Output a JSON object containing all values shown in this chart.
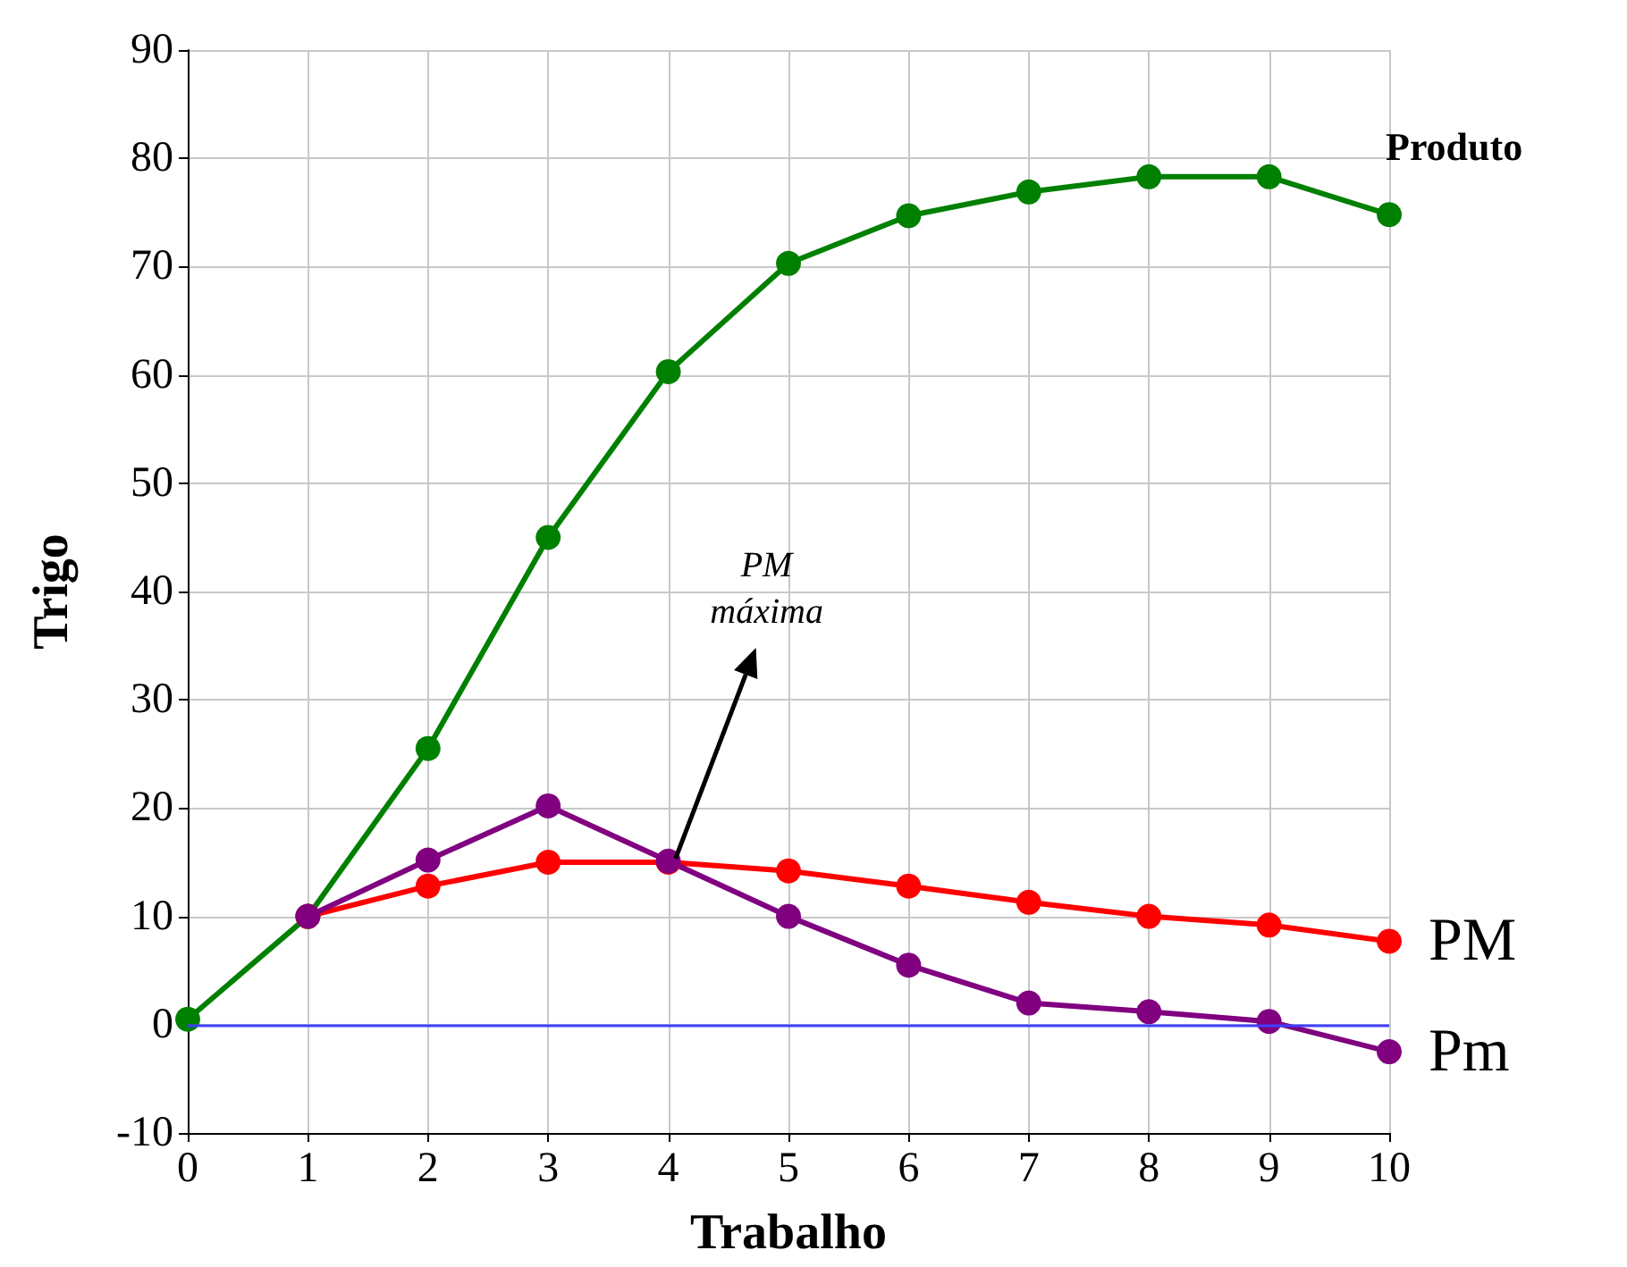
{
  "chart_data": {
    "type": "line",
    "xlabel": "Trabalho",
    "ylabel": "Trigo",
    "x": [
      0,
      1,
      2,
      3,
      4,
      5,
      6,
      7,
      8,
      9,
      10
    ],
    "series": [
      {
        "name": "Produto",
        "color": "#008000",
        "values": [
          0.5,
          10,
          25.5,
          45,
          60.3,
          70.3,
          74.7,
          76.9,
          78.3,
          78.3,
          74.8
        ]
      },
      {
        "name": "PM",
        "color": "#ff0000",
        "values": [
          null,
          10,
          12.8,
          15,
          15,
          14.2,
          12.8,
          11.3,
          10,
          9.2,
          7.7
        ]
      },
      {
        "name": "Pm",
        "color": "#800080",
        "values": [
          null,
          10,
          15.2,
          20.2,
          15.1,
          10,
          5.5,
          2,
          1.2,
          0.3,
          -2.5
        ]
      }
    ],
    "xlim": [
      0,
      10
    ],
    "xticks": [
      0,
      1,
      2,
      3,
      4,
      5,
      6,
      7,
      8,
      9,
      10
    ],
    "ylim": [
      -10,
      90
    ],
    "yticks": [
      -10,
      0,
      10,
      20,
      30,
      40,
      50,
      60,
      70,
      80,
      90
    ],
    "grid": true,
    "legend": false,
    "marker": "circle",
    "line_style": "solid",
    "ref_lines": [
      {
        "axis": "y",
        "value": 0,
        "label": null,
        "color": "#4040ff"
      }
    ],
    "annotations": [
      {
        "text": "PM\nmáxima",
        "x": 4,
        "y": 15
      }
    ]
  }
}
